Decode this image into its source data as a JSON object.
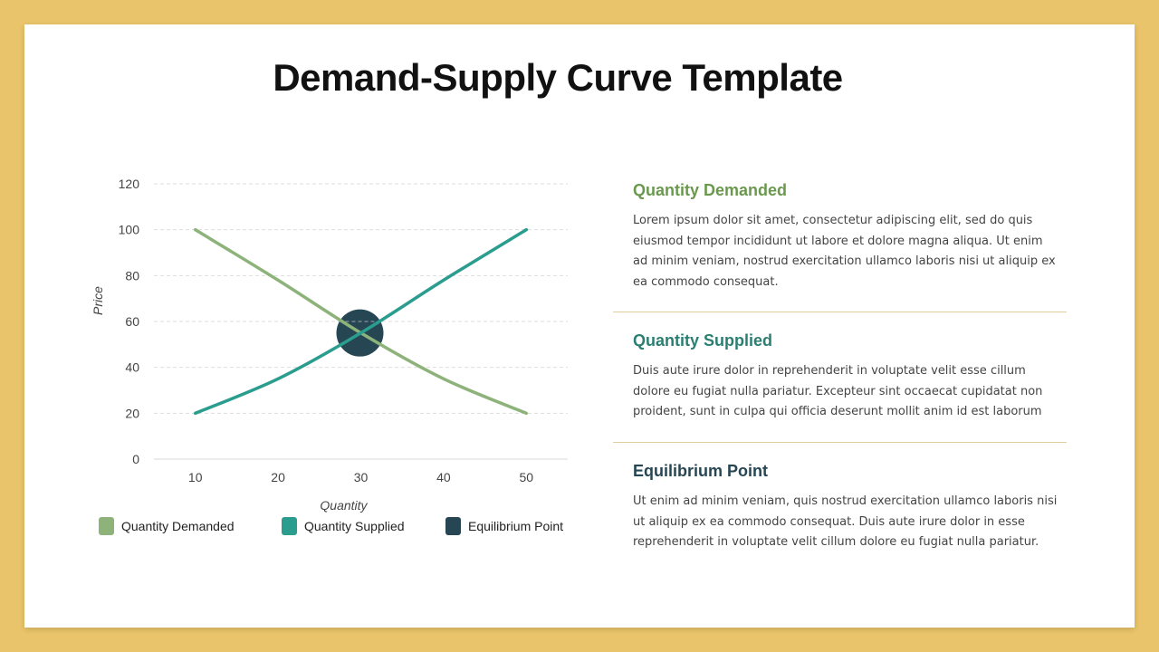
{
  "slide": {
    "title": "Demand-Supply Curve Template",
    "frame_color": "#e9c46a"
  },
  "chart_data": {
    "type": "line",
    "title": "",
    "xlabel": "Quantity",
    "ylabel": "Price",
    "x": [
      10,
      20,
      30,
      40,
      50
    ],
    "xlim": [
      5,
      55
    ],
    "ylim": [
      0,
      120
    ],
    "yticks": [
      0,
      20,
      40,
      60,
      80,
      100,
      120
    ],
    "grid": true,
    "legend": "bottom",
    "series": [
      {
        "name": "Quantity Demanded",
        "color": "#8db37a",
        "values": [
          100,
          78,
          55,
          35,
          20
        ]
      },
      {
        "name": "Quantity Supplied",
        "color": "#2a9d8f",
        "values": [
          20,
          35,
          55,
          78,
          100
        ]
      }
    ],
    "markers": [
      {
        "name": "Equilibrium Point",
        "color": "#264653",
        "x": 30,
        "y": 55
      }
    ]
  },
  "legend": [
    {
      "label": "Quantity Demanded",
      "color": "#8db37a"
    },
    {
      "label": "Quantity Supplied",
      "color": "#2a9d8f"
    },
    {
      "label": "Equilibrium Point",
      "color": "#264653"
    }
  ],
  "sections": [
    {
      "heading": "Quantity Demanded",
      "color": "#6a994e",
      "body": "Lorem ipsum dolor sit amet, consectetur adipiscing elit, sed do quis eiusmod tempor incididunt ut labore et dolore magna aliqua. Ut enim ad minim veniam, nostrud exercitation ullamco laboris nisi ut aliquip ex ea commodo consequat."
    },
    {
      "heading": "Quantity Supplied",
      "color": "#2a7f72",
      "body": "Duis aute irure dolor in reprehenderit in voluptate velit esse cillum dolore eu fugiat nulla pariatur. Excepteur sint occaecat cupidatat non proident, sunt in culpa qui officia deserunt mollit anim id est laborum"
    },
    {
      "heading": "Equilibrium Point",
      "color": "#264653",
      "body": "Ut enim ad minim veniam, quis nostrud exercitation ullamco laboris nisi ut aliquip ex ea commodo consequat. Duis aute irure dolor in esse reprehenderit in voluptate velit cillum dolore eu fugiat nulla pariatur."
    }
  ]
}
